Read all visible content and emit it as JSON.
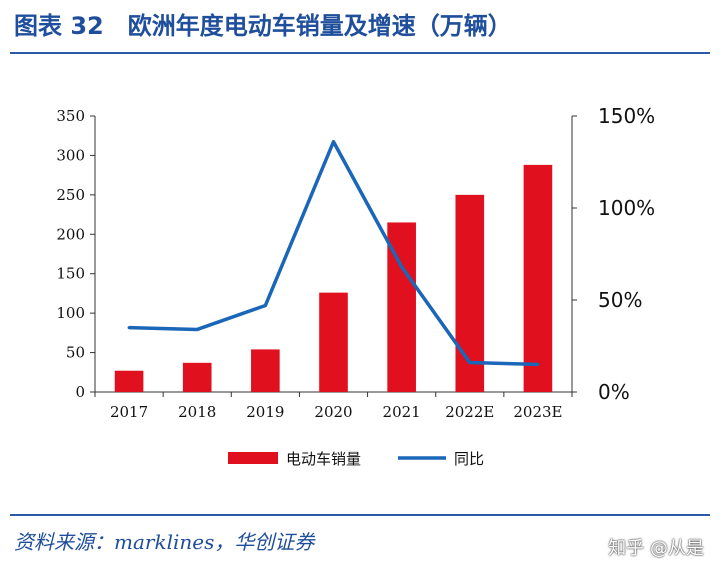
{
  "figure": {
    "title": "图表 32　欧洲年度电动车销量及增速（万辆）",
    "source": "资料来源：marklines，华创证券",
    "watermark": "知乎 @从是"
  },
  "colors": {
    "bar": "#e0101e",
    "line": "#1a66b8",
    "title": "#1f4e9c"
  },
  "chart_data": {
    "type": "bar",
    "categories": [
      "2017",
      "2018",
      "2019",
      "2020",
      "2021",
      "2022E",
      "2023E"
    ],
    "series": [
      {
        "name": "电动车销量",
        "type": "bar",
        "axis": "left",
        "values": [
          27,
          37,
          54,
          126,
          215,
          250,
          288
        ]
      },
      {
        "name": "同比",
        "type": "line",
        "axis": "right",
        "values": [
          0.35,
          0.34,
          0.47,
          1.36,
          0.68,
          0.16,
          0.15
        ]
      }
    ],
    "y_left": {
      "lim": [
        0,
        350
      ],
      "ticks": [
        "0",
        "50",
        "100",
        "150",
        "200",
        "250",
        "300",
        "350"
      ]
    },
    "y_right": {
      "lim": [
        0,
        1.5
      ],
      "ticks": [
        "0%",
        "50%",
        "100%",
        "150%"
      ]
    },
    "grid": false,
    "legend_position": "bottom"
  }
}
